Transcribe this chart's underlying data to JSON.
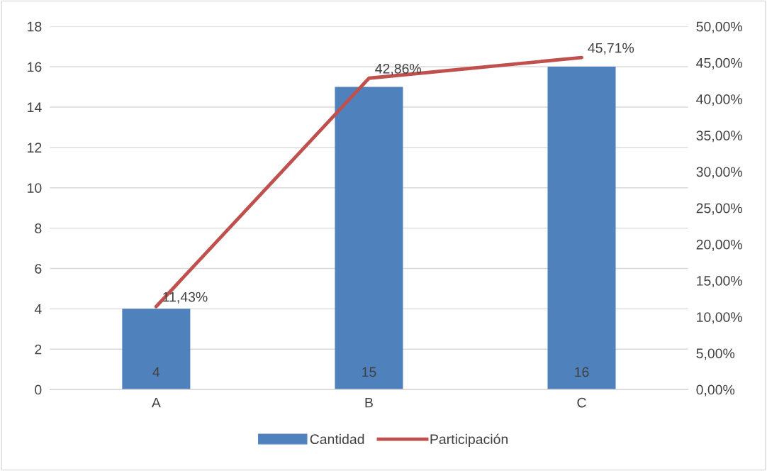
{
  "chart_data": {
    "type": "bar",
    "categories": [
      "A",
      "B",
      "C"
    ],
    "series": [
      {
        "name": "Cantidad",
        "color": "#4f81bd",
        "values": [
          4,
          15,
          16
        ],
        "value_labels": [
          "4",
          "15",
          "16"
        ]
      },
      {
        "name": "Participación",
        "type": "line",
        "axis": "y2",
        "color": "#c0504d",
        "values": [
          11.43,
          42.86,
          45.71
        ],
        "value_labels": [
          "11,43%",
          "42,86%",
          "45,71%"
        ]
      }
    ],
    "ylim": [
      0,
      18
    ],
    "yticks": [
      0,
      2,
      4,
      6,
      8,
      10,
      12,
      14,
      16,
      18
    ],
    "y2lim": [
      0,
      50
    ],
    "y2ticks": [
      {
        "value": 0,
        "label": "0,00%"
      },
      {
        "value": 5,
        "label": "5,00%"
      },
      {
        "value": 10,
        "label": "10,00%"
      },
      {
        "value": 15,
        "label": "15,00%"
      },
      {
        "value": 20,
        "label": "20,00%"
      },
      {
        "value": 25,
        "label": "25,00%"
      },
      {
        "value": 30,
        "label": "30,00%"
      },
      {
        "value": 35,
        "label": "35,00%"
      },
      {
        "value": 40,
        "label": "40,00%"
      },
      {
        "value": 45,
        "label": "45,00%"
      },
      {
        "value": 50,
        "label": "50,00%"
      }
    ],
    "grid": "y",
    "legend": "bottom",
    "marker": "none",
    "line_style": "solid"
  }
}
